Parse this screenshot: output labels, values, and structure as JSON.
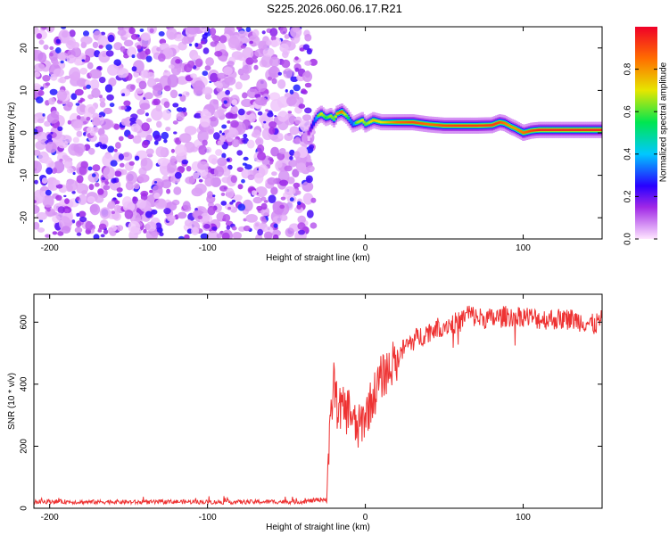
{
  "title": "S225.2026.060.06.17.R21",
  "colorbar": {
    "label": "Normalized spectral amplitude",
    "ticks": [
      0.0,
      0.2,
      0.4,
      0.6,
      0.8
    ],
    "range": [
      0,
      1
    ]
  },
  "chart_data": [
    {
      "type": "heatmap",
      "xlabel": "Height of straight line (km)",
      "ylabel": "Frequency (Hz)",
      "xlim": [
        -210,
        150
      ],
      "ylim": [
        -25,
        25
      ],
      "xticks": [
        -200,
        -100,
        0,
        100
      ],
      "yticks": [
        -20,
        -10,
        0,
        10,
        20
      ],
      "noise_region_x": [
        -210,
        -35
      ],
      "ridge": {
        "x": [
          -36,
          -32,
          -30,
          -28,
          -25,
          -22,
          -20,
          -18,
          -15,
          -12,
          -10,
          -8,
          -5,
          -2,
          0,
          5,
          10,
          20,
          30,
          40,
          50,
          60,
          70,
          80,
          85,
          88,
          92,
          95,
          100,
          105,
          110,
          120,
          130,
          140,
          150
        ],
        "frequency": [
          0.0,
          3.0,
          4.0,
          4.5,
          3.5,
          4.0,
          3.2,
          4.5,
          5.0,
          4.0,
          3.0,
          2.0,
          2.5,
          3.0,
          2.0,
          3.0,
          2.5,
          2.5,
          2.5,
          2.0,
          1.7,
          1.7,
          1.7,
          1.8,
          2.5,
          2.3,
          1.5,
          1.0,
          0.0,
          0.5,
          0.7,
          0.7,
          0.7,
          0.7,
          0.7
        ],
        "amplitude": [
          0.2,
          0.45,
          0.6,
          0.7,
          0.55,
          0.65,
          0.6,
          0.75,
          0.85,
          0.6,
          0.5,
          0.45,
          0.65,
          0.7,
          0.6,
          0.75,
          0.7,
          0.85,
          0.9,
          0.85,
          0.9,
          0.92,
          0.92,
          0.92,
          0.9,
          0.85,
          0.8,
          0.8,
          0.85,
          0.9,
          0.95,
          0.95,
          0.95,
          0.95,
          0.95
        ]
      }
    },
    {
      "type": "line",
      "xlabel": "Height of straight line (km)",
      "ylabel": "SNR (10 * v/v)",
      "xlim": [
        -210,
        150
      ],
      "ylim": [
        0,
        690
      ],
      "xticks": [
        -200,
        -100,
        0,
        100
      ],
      "yticks": [
        0,
        200,
        400,
        600
      ],
      "series": [
        {
          "color": "#ee3333",
          "x": [
            -210,
            -200,
            -180,
            -160,
            -140,
            -120,
            -100,
            -80,
            -60,
            -40,
            -25,
            -22,
            -20,
            -18,
            -15,
            -12,
            -10,
            -8,
            -5,
            0,
            5,
            10,
            15,
            20,
            25,
            30,
            40,
            50,
            60,
            65,
            70,
            80,
            90,
            100,
            110,
            120,
            130,
            140,
            145,
            150
          ],
          "y": [
            20,
            22,
            20,
            21,
            19,
            21,
            20,
            20,
            21,
            21,
            30,
            260,
            420,
            330,
            320,
            310,
            330,
            280,
            250,
            300,
            360,
            420,
            450,
            480,
            520,
            540,
            570,
            590,
            600,
            630,
            615,
            610,
            620,
            620,
            610,
            610,
            610,
            600,
            590,
            610
          ]
        }
      ]
    }
  ]
}
